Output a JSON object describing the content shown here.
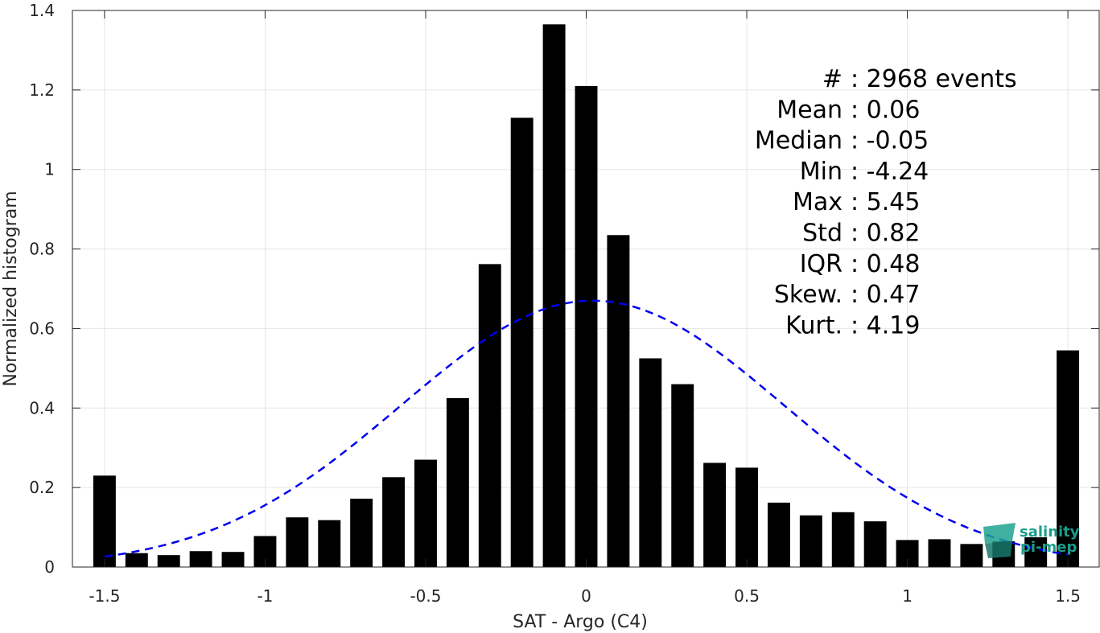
{
  "chart_data": {
    "type": "bar",
    "xlabel": "SAT - Argo (C4)",
    "ylabel": "Normalized histogram",
    "xlim": [
      -1.6,
      1.6
    ],
    "ylim": [
      0,
      1.4
    ],
    "grid": true,
    "x_ticks": [
      -1.5,
      -1,
      -0.5,
      0,
      0.5,
      1,
      1.5
    ],
    "x_tick_labels": [
      "-1.5",
      "-1",
      "-0.5",
      "0",
      "0.5",
      "1",
      "1.5"
    ],
    "y_ticks": [
      0,
      0.2,
      0.4,
      0.6,
      0.8,
      1,
      1.2,
      1.4
    ],
    "y_tick_labels": [
      "0",
      "0.2",
      "0.4",
      "0.6",
      "0.8",
      "1",
      "1.2",
      "1.4"
    ],
    "bar_color": "#000000",
    "bins": [
      {
        "x": -1.5,
        "y": 0.23
      },
      {
        "x": -1.4,
        "y": 0.035
      },
      {
        "x": -1.3,
        "y": 0.03
      },
      {
        "x": -1.2,
        "y": 0.04
      },
      {
        "x": -1.1,
        "y": 0.038
      },
      {
        "x": -1.0,
        "y": 0.078
      },
      {
        "x": -0.9,
        "y": 0.125
      },
      {
        "x": -0.8,
        "y": 0.118
      },
      {
        "x": -0.7,
        "y": 0.172
      },
      {
        "x": -0.6,
        "y": 0.226
      },
      {
        "x": -0.5,
        "y": 0.27
      },
      {
        "x": -0.4,
        "y": 0.425
      },
      {
        "x": -0.3,
        "y": 0.762
      },
      {
        "x": -0.2,
        "y": 1.13
      },
      {
        "x": -0.1,
        "y": 1.365
      },
      {
        "x": 0.0,
        "y": 1.21
      },
      {
        "x": 0.1,
        "y": 0.835
      },
      {
        "x": 0.2,
        "y": 0.525
      },
      {
        "x": 0.3,
        "y": 0.46
      },
      {
        "x": 0.4,
        "y": 0.262
      },
      {
        "x": 0.5,
        "y": 0.25
      },
      {
        "x": 0.6,
        "y": 0.162
      },
      {
        "x": 0.7,
        "y": 0.13
      },
      {
        "x": 0.8,
        "y": 0.138
      },
      {
        "x": 0.9,
        "y": 0.115
      },
      {
        "x": 1.0,
        "y": 0.068
      },
      {
        "x": 1.1,
        "y": 0.07
      },
      {
        "x": 1.2,
        "y": 0.058
      },
      {
        "x": 1.3,
        "y": 0.065
      },
      {
        "x": 1.4,
        "y": 0.075
      },
      {
        "x": 1.5,
        "y": 0.545
      }
    ],
    "fit_curve": {
      "type": "gaussian",
      "style": "dashed",
      "color": "#0000ee",
      "mean": 0.02,
      "std": 0.597,
      "peak": 0.67,
      "x_range": [
        -1.5,
        1.5
      ]
    },
    "stats": [
      {
        "label": "#",
        "value": ": 2968 events"
      },
      {
        "label": "Mean",
        "value": ": 0.06"
      },
      {
        "label": "Median",
        "value": ": -0.05"
      },
      {
        "label": "Min",
        "value": ": -4.24"
      },
      {
        "label": "Max",
        "value": ": 5.45"
      },
      {
        "label": "Std",
        "value": ": 0.82"
      },
      {
        "label": "IQR",
        "value": ": 0.48"
      },
      {
        "label": "Skew.",
        "value": ": 0.47"
      },
      {
        "label": "Kurt.",
        "value": ": 4.19"
      }
    ]
  },
  "logo": {
    "line1": "salinity",
    "line2": "pi-mep",
    "color": "#1a9e8a"
  }
}
